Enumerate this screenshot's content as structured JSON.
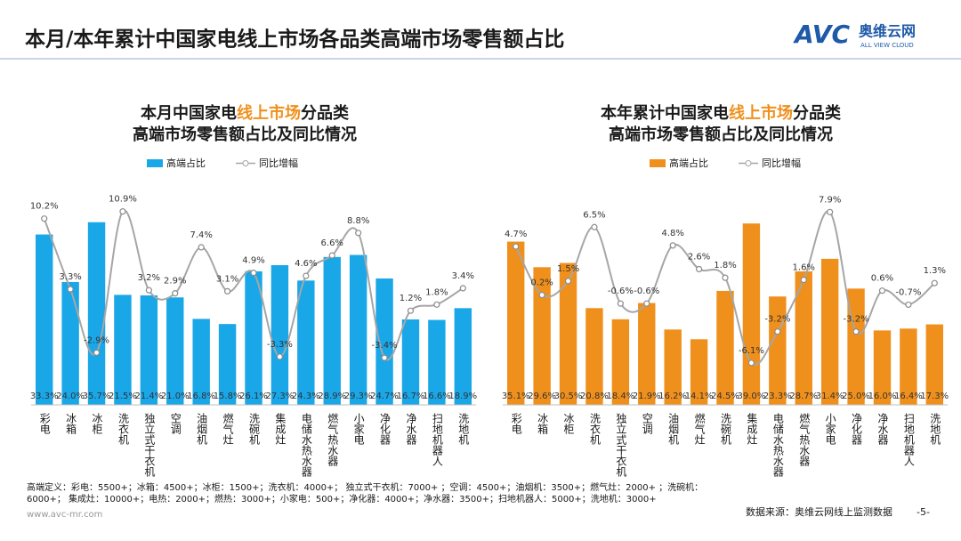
{
  "header": {
    "title": "本月/本年累计中国家电线上市场各品类高端市场零售额占比",
    "logo": "AVC",
    "logo_cn": "奥维云网",
    "logo_en": "ALL VIEW CLOUD"
  },
  "chart_data": [
    {
      "type": "bar",
      "title": [
        [
          {
            "text": "本月中国家电",
            "color": "#1a1a1a"
          },
          {
            "text": "线上市场",
            "color": "#f0901c"
          },
          {
            "text": "分品类",
            "color": "#1a1a1a"
          }
        ],
        [
          {
            "text": "高端市场零售额占比及同比情况",
            "color": "#1a1a1a"
          }
        ]
      ],
      "categories": [
        "彩电",
        "冰箱",
        "冰柜",
        "洗衣机",
        "独立式干衣机",
        "空调",
        "油烟机",
        "燃气灶",
        "洗碗机",
        "集成灶",
        "电储水热水器",
        "燃气热水器",
        "小家电",
        "净化器",
        "净水器",
        "扫地机器人",
        "洗地机"
      ],
      "series": [
        {
          "name": "高端占比",
          "color": "#1aa7e8",
          "values": [
            33.3,
            24.0,
            35.7,
            21.5,
            21.4,
            21.0,
            16.8,
            15.8,
            26.1,
            27.3,
            24.3,
            28.9,
            29.3,
            24.7,
            16.7,
            16.6,
            18.9
          ],
          "value_labels": [
            "33.3%",
            "24.0%",
            "35.7%",
            "21.5%",
            "21.4%",
            "21.0%",
            "16.8%",
            "15.8%",
            "26.1%",
            "27.3%",
            "24.3%",
            "28.9%",
            "29.3%",
            "24.7%",
            "16.7%",
            "16.6%",
            "18.9%"
          ]
        },
        {
          "name": "同比增幅",
          "type": "line",
          "axis": "y2",
          "color": "#a6a6a6",
          "values": [
            10.2,
            3.3,
            -2.9,
            10.9,
            3.2,
            2.9,
            7.4,
            3.1,
            4.9,
            -3.3,
            4.6,
            6.6,
            8.8,
            -3.4,
            1.2,
            1.8,
            3.4
          ],
          "value_labels": [
            "10.2%",
            "3.3%",
            "-2.9%",
            "10.9%",
            "3.2%",
            "2.9%",
            "7.4%",
            "3.1%",
            "4.9%",
            "-3.3%",
            "4.6%",
            "6.6%",
            "8.8%",
            "-3.4%",
            "1.2%",
            "1.8%",
            "3.4%"
          ]
        }
      ],
      "ylim": [
        0,
        40
      ],
      "y2lim": [
        -8,
        12
      ]
    },
    {
      "type": "bar",
      "title": [
        [
          {
            "text": "本年累计中国家电",
            "color": "#1a1a1a"
          },
          {
            "text": "线上市场",
            "color": "#f0901c"
          },
          {
            "text": "分品类",
            "color": "#1a1a1a"
          }
        ],
        [
          {
            "text": "高端市场零售额占比及同比情况",
            "color": "#1a1a1a"
          }
        ]
      ],
      "categories": [
        "彩电",
        "冰箱",
        "冰柜",
        "洗衣机",
        "独立式干衣机",
        "空调",
        "油烟机",
        "燃气灶",
        "洗碗机",
        "集成灶",
        "电储水热水器",
        "燃气热水器",
        "小家电",
        "净化器",
        "净水器",
        "扫地机器人",
        "洗地机"
      ],
      "series": [
        {
          "name": "高端占比",
          "color": "#f0901c",
          "values": [
            35.1,
            29.6,
            30.5,
            20.8,
            18.4,
            21.9,
            16.2,
            14.1,
            24.5,
            39.0,
            23.3,
            28.7,
            31.4,
            25.0,
            16.0,
            16.4,
            17.3
          ],
          "value_labels": [
            "35.1%",
            "29.6%",
            "30.5%",
            "20.8%",
            "18.4%",
            "21.9%",
            "16.2%",
            "14.1%",
            "24.5%",
            "39.0%",
            "23.3%",
            "28.7%",
            "31.4%",
            "25.0%",
            "16.0%",
            "16.4%",
            "17.3%"
          ]
        },
        {
          "name": "同比增幅",
          "type": "line",
          "axis": "y2",
          "color": "#a6a6a6",
          "values": [
            4.7,
            0.2,
            1.5,
            6.5,
            -0.6,
            -0.6,
            4.8,
            2.6,
            1.8,
            -6.1,
            -3.2,
            1.6,
            7.9,
            -3.2,
            0.6,
            -0.7,
            1.3
          ],
          "value_labels": [
            "4.7%",
            "0.2%",
            "1.5%",
            "6.5%",
            "-0.6%",
            "-0.6%",
            "4.8%",
            "2.6%",
            "1.8%",
            "-6.1%",
            "-3.2%",
            "1.6%",
            "7.9%",
            "-3.2%",
            "0.6%",
            "-0.7%",
            "1.3%"
          ]
        }
      ],
      "ylim": [
        0,
        44
      ],
      "y2lim": [
        -10,
        9
      ]
    }
  ],
  "footer": {
    "note_line1": "高端定义：彩电：5500+；冰箱：4500+；冰柜：1500+；洗衣机：4000+；  独立式干衣机：7000+ ；空调：4500+；油烟机：3500+；燃气灶：2000+ ；洗碗机：",
    "note_line2": "6000+；  集成灶：10000+；电热：2000+；燃热：3000+；小家电：500+；净化器：4000+；净水器：3500+；扫地机器人：5000+；洗地机：3000+",
    "website": "www.avc-mr.com",
    "source": "数据来源：奥维云网线上监测数据",
    "page": "-5-"
  }
}
